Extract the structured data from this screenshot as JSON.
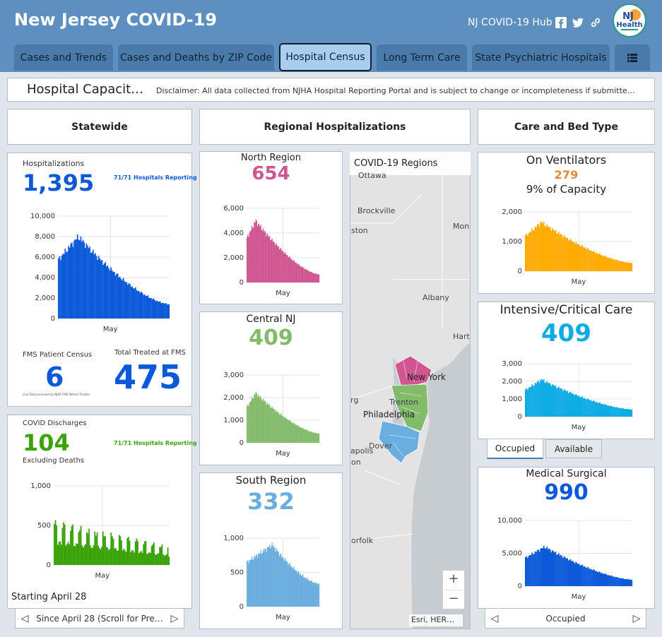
{
  "header": {
    "title": "New Jersey COVID-19",
    "hub_link": "NJ COVID-19 Hub"
  },
  "tabs": [
    {
      "label": "Cases and Trends"
    },
    {
      "label": "Cases and Deaths by ZIP Code"
    },
    {
      "label": "Hospital Census",
      "active": true
    },
    {
      "label": "Long Term Care"
    },
    {
      "label": "State Psychiatric Hospitals"
    }
  ],
  "banner": {
    "title": "Hospital Capacit…",
    "disclaimer": "Disclaimer: All data collected from NJHA Hospital Reporting Portal and is subject to change or incompleteness if submitte…"
  },
  "sections": {
    "statewide": "Statewide",
    "regional": "Regional Hospitalizations",
    "care": "Care and Bed Type"
  },
  "statewide": {
    "label": "Hospitalizations",
    "value": "1,395",
    "reporting": "71/71 Hospitals Reporting",
    "fms_label": "FMS Patient Census",
    "fms_value": "6",
    "fms_note": "Live Data provided by NJHF FMS Patient Tracker",
    "treated_label": "Total Treated at FMS",
    "treated_value": "475",
    "chart": {
      "yticks": [
        "10,000",
        "8,000",
        "6,000",
        "4,000",
        "2,000",
        "0"
      ],
      "xlabel": "May"
    }
  },
  "discharges": {
    "label": "COVID Discharges",
    "value": "104",
    "reporting": "71/71 Hospitals Reporting",
    "sub": "Excluding Deaths",
    "footer": "Starting April 28",
    "nav_text": "Since April 28 (Scroll for Pre…",
    "chart": {
      "yticks": [
        "1,000",
        "500",
        "0"
      ],
      "xlabel": "May"
    }
  },
  "regions": {
    "north": {
      "title": "North Region",
      "value": "654",
      "yticks": [
        "6,000",
        "4,000",
        "2,000",
        "0"
      ],
      "xlabel": "May"
    },
    "central": {
      "title": "Central NJ",
      "value": "409",
      "yticks": [
        "3,000",
        "2,000",
        "1,000",
        "0"
      ],
      "xlabel": "May"
    },
    "south": {
      "title": "South Region",
      "value": "332",
      "yticks": [
        "1,000",
        "500",
        "0"
      ],
      "xlabel": "May"
    }
  },
  "map": {
    "title": "COVID-19 Regions",
    "labels": [
      "Ottawa",
      "Brockville",
      "ston",
      "Mon",
      "Albany",
      "Hart",
      "New York",
      "rg",
      "Trenton",
      "Philadelphia",
      "Dover",
      "apolis",
      "on",
      "orfolk"
    ],
    "attribution": "Esri, HER…",
    "zoom_in": "+",
    "zoom_out": "−"
  },
  "care": {
    "ventilators": {
      "title": "On Ventilators",
      "value": "279",
      "capacity": "9% of Capacity",
      "yticks": [
        "2,000",
        "1,000",
        "0"
      ],
      "xlabel": "May"
    },
    "icu": {
      "title": "Intensive/Critical Care",
      "value": "409",
      "yticks": [
        "3,000",
        "2,000",
        "1,000",
        "0"
      ],
      "xlabel": "May",
      "tab_occupied": "Occupied",
      "tab_available": "Available"
    },
    "medsurg": {
      "title": "Medical Surgical",
      "value": "990",
      "yticks": [
        "10,000",
        "5,000",
        "0"
      ],
      "xlabel": "May",
      "nav_text": "Occupied"
    }
  },
  "colors": {
    "statewide": "#0c5ad9",
    "discharges": "#3aa309",
    "north": "#d05590",
    "central": "#82bb6a",
    "south": "#6aaddf",
    "ventilators": "#ffab03",
    "ventilators_value": "#e8873a",
    "icu": "#0eabe4",
    "medsurg": "#0c5ad9"
  },
  "chart_data": [
    {
      "type": "area",
      "title": "Hospitalizations",
      "xlabel": "May",
      "ylim": [
        0,
        10000
      ],
      "x_range": [
        "2020-04-01",
        "2020-07-10"
      ],
      "peak": 8000,
      "last": 1395
    },
    {
      "type": "bar",
      "title": "COVID Discharges",
      "xlabel": "May",
      "ylim": [
        0,
        1000
      ],
      "last": 104
    },
    {
      "type": "area",
      "title": "North Region",
      "xlabel": "May",
      "ylim": [
        0,
        6000
      ],
      "peak": 5000,
      "last": 654
    },
    {
      "type": "area",
      "title": "Central NJ",
      "xlabel": "May",
      "ylim": [
        0,
        3000
      ],
      "peak": 2200,
      "last": 409
    },
    {
      "type": "area",
      "title": "South Region",
      "xlabel": "May",
      "ylim": [
        0,
        1000
      ],
      "peak": 900,
      "last": 332
    },
    {
      "type": "area",
      "title": "On Ventilators",
      "xlabel": "May",
      "ylim": [
        0,
        2000
      ],
      "peak": 1650,
      "last": 279
    },
    {
      "type": "area",
      "title": "Intensive/Critical Care",
      "xlabel": "May",
      "ylim": [
        0,
        3000
      ],
      "peak": 2100,
      "last": 409
    },
    {
      "type": "area",
      "title": "Medical Surgical",
      "xlabel": "May",
      "ylim": [
        0,
        10000
      ],
      "peak": 6000,
      "last": 990
    }
  ]
}
